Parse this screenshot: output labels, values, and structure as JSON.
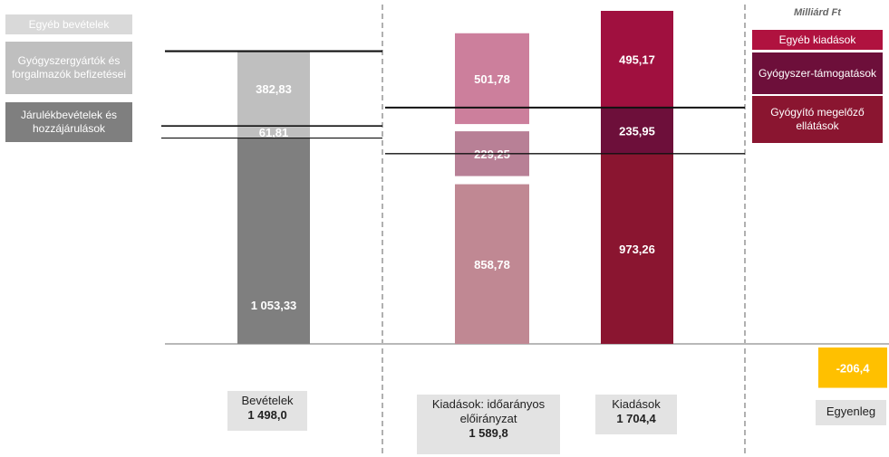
{
  "unit_label": "Milliárd Ft",
  "legend_left": [
    {
      "label": "Egyéb bevételek",
      "color": "#d9d9d9"
    },
    {
      "label": "Gyógyszergyártók és forgalmazók befizetései",
      "color": "#bfbfbf"
    },
    {
      "label": "Járulékbevételek és hozzájárulások",
      "color": "#7f7f7f"
    }
  ],
  "legend_right": [
    {
      "label": "Egyéb kiadások",
      "color": "#b0123f"
    },
    {
      "label": "Gyógyszer-támogatások",
      "color": "#6d0f3a"
    },
    {
      "label": "Gyógyító megelőző ellátások",
      "color": "#8a1530"
    }
  ],
  "chart_data": {
    "type": "bar",
    "stacked": true,
    "unit": "Milliárd Ft",
    "categories": [
      {
        "name": "Bevételek",
        "total": "1 498,0"
      },
      {
        "name": "Kiadások: időarányos előirányzat",
        "total": "1 589,8"
      },
      {
        "name": "Kiadások",
        "total": "1 704,4"
      },
      {
        "name": "Egyenleg",
        "total": ""
      }
    ],
    "bars": [
      {
        "category": "Bevételek",
        "segments": [
          {
            "series": "Járulékbevételek és hozzájárulások",
            "value": 1053.33,
            "label": "1 053,33",
            "color": "#7f7f7f"
          },
          {
            "series": "Gyógyszergyártók és forgalmazók befizetései",
            "value": 61.81,
            "label": "61,81",
            "color": "#bfbfbf"
          },
          {
            "series": "Egyéb bevételek",
            "value": 382.83,
            "label": "382,83",
            "color": "#bfbfbf"
          }
        ]
      },
      {
        "category": "Kiadások: időarányos előirányzat",
        "segments": [
          {
            "series": "Gyógyító megelőző ellátások",
            "value": 858.78,
            "label": "858,78",
            "color": "#c08893"
          },
          {
            "series": "Gyógyszer-támogatások",
            "value": 229.25,
            "label": "229,25",
            "color": "#b88096"
          },
          {
            "series": "Egyéb kiadások",
            "value": 501.78,
            "label": "501,78",
            "color": "#cc7f9c"
          }
        ]
      },
      {
        "category": "Kiadások",
        "segments": [
          {
            "series": "Gyógyító megelőző ellátások",
            "value": 973.26,
            "label": "973,26",
            "color": "#8a1530"
          },
          {
            "series": "Gyógyszer-támogatások",
            "value": 235.95,
            "label": "235,95",
            "color": "#6d0f3a"
          },
          {
            "series": "Egyéb kiadások",
            "value": 495.17,
            "label": "495,17",
            "color": "#a0103f"
          }
        ]
      },
      {
        "category": "Egyenleg",
        "segments": [
          {
            "series": "Egyenleg",
            "value": -206.4,
            "label": "-206,4",
            "color": "#ffc000"
          }
        ]
      }
    ],
    "grid": false,
    "legend_placement": "left and right"
  }
}
